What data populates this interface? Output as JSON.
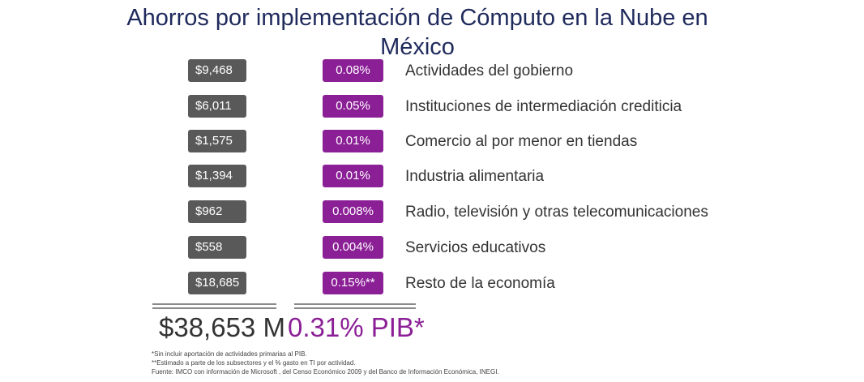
{
  "chart_data": {
    "type": "table",
    "title": "Ahorros por implementación de Cómputo en la Nube en México",
    "rows": [
      {
        "amount": "$9,468",
        "pct": "0.08%",
        "sector": "Actividades del gobierno"
      },
      {
        "amount": "$6,011",
        "pct": "0.05%",
        "sector": "Instituciones de intermediación crediticia"
      },
      {
        "amount": "$1,575",
        "pct": "0.01%",
        "sector": "Comercio al por menor en tiendas"
      },
      {
        "amount": "$1,394",
        "pct": "0.01%",
        "sector": "Industria alimentaria"
      },
      {
        "amount": "$962",
        "pct": "0.008%",
        "sector": "Radio, televisión y otras telecomunicaciones"
      },
      {
        "amount": "$558",
        "pct": "0.004%",
        "sector": "Servicios educativos"
      },
      {
        "amount": "$18,685",
        "pct": "0.15%**",
        "sector": "Resto de la economía"
      }
    ],
    "totals": {
      "amount": "$38,653 M",
      "pct": "0.31% PIB*"
    },
    "footnotes": [
      "*Sin incluir aportación de actividades primarias al PIB.",
      "**Estimado a parte de los subsectores y el % gasto en TI por actividad.",
      "Fuente: IMCO con información de Microsoft , del Censo Económico 2009 y del Banco de Información Económica, INEGI."
    ]
  },
  "colors": {
    "title": "#1f2a5c",
    "amount_box": "#595959",
    "pct_box": "#8b1f96",
    "total_amount": "#333333",
    "total_pct": "#8b1f96"
  }
}
